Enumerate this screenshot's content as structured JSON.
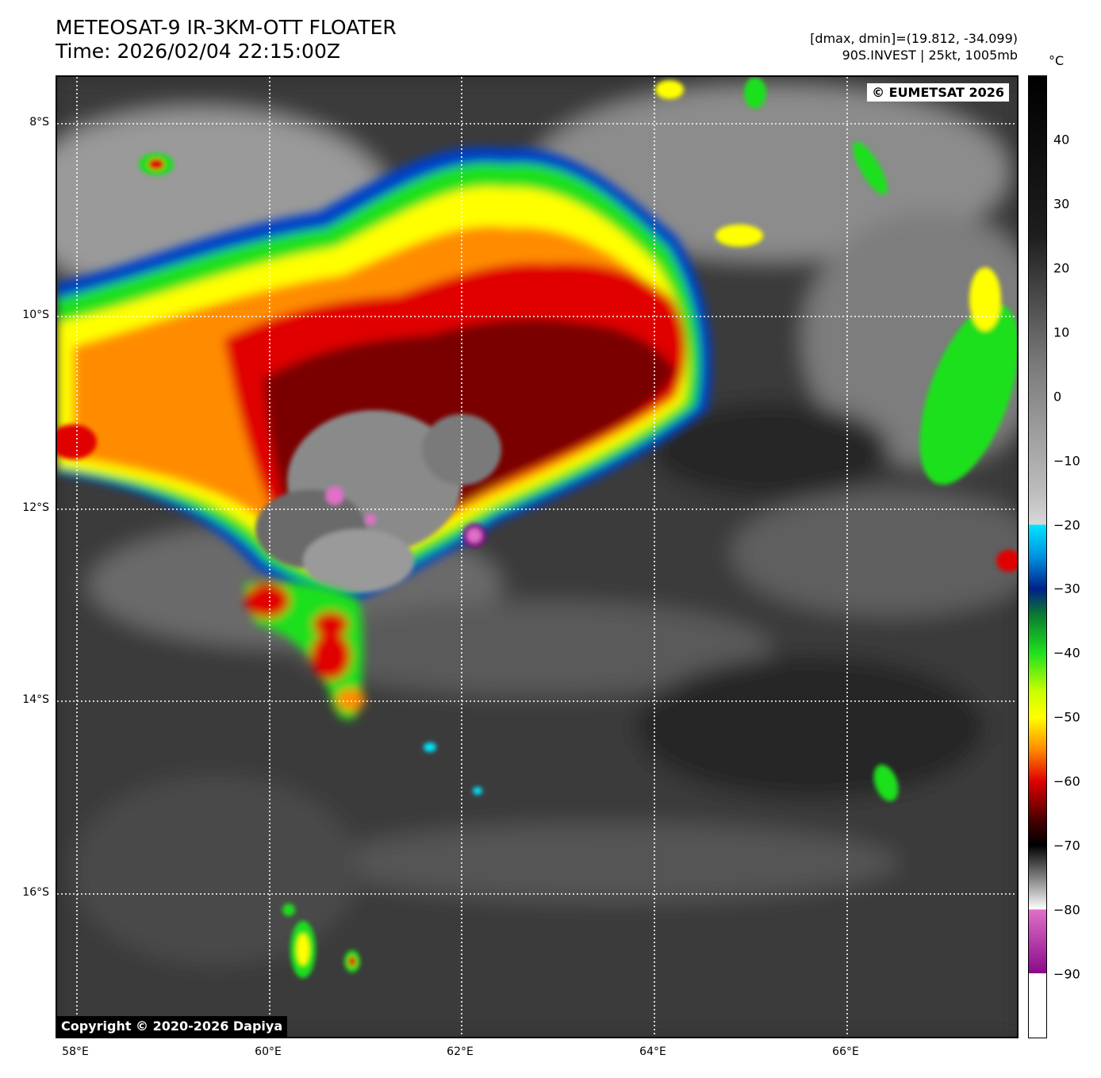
{
  "header": {
    "title_line1": "METEOSAT-9 IR-3KM-OTT FLOATER",
    "title_line2": "Time: 2026/02/04 22:15:00Z",
    "meta_line1": "[dmax, dmin]=(19.812, -34.099)",
    "meta_line2": "90S.INVEST | 25kt, 1005mb",
    "unit": "°C"
  },
  "map": {
    "copyright_top": "© EUMETSAT 2026",
    "copyright_bottom": "Copyright © 2020-2026 Dapiya",
    "lat_labels": [
      "8°S",
      "10°S",
      "12°S",
      "14°S",
      "16°S"
    ],
    "lon_labels": [
      "58°E",
      "60°E",
      "62°E",
      "64°E",
      "66°E"
    ]
  },
  "colorbar": {
    "ticks": [
      "40",
      "30",
      "20",
      "10",
      "0",
      "−10",
      "−20",
      "−30",
      "−40",
      "−50",
      "−60",
      "−70",
      "−80",
      "−90"
    ],
    "colors": {
      "warm": "#000000",
      "mid": "#bdbdbd",
      "cyan": "#00e5ff",
      "blue": "#00208a",
      "green": "#1fe01f",
      "yellow": "#ffff00",
      "orange": "#ff8c00",
      "red": "#e00000",
      "darkred": "#4a0000",
      "magenta": "#e070c8",
      "purple": "#8a0a8a"
    }
  }
}
